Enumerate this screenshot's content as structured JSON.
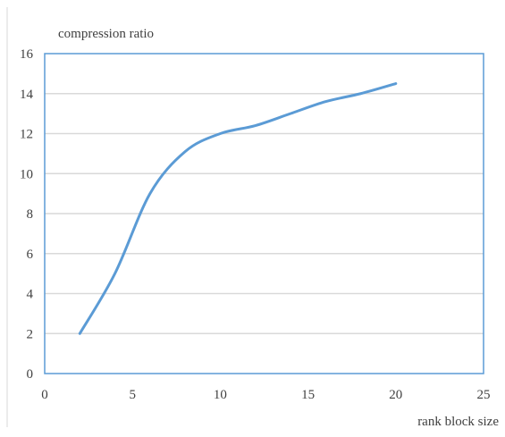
{
  "chart_data": {
    "type": "line",
    "title": "",
    "xlabel": "rank block size",
    "ylabel": "compression ratio",
    "xlim": [
      0,
      25
    ],
    "ylim": [
      0,
      16
    ],
    "xticks": [
      0,
      5,
      10,
      15,
      20,
      25
    ],
    "yticks": [
      0,
      2,
      4,
      6,
      8,
      10,
      12,
      14,
      16
    ],
    "grid": "horizontal",
    "legend": "none",
    "series": [
      {
        "x": [
          2,
          4,
          6,
          8,
          10,
          12,
          14,
          16,
          18,
          20
        ],
        "y": [
          2.0,
          5.0,
          9.0,
          11.1,
          12.0,
          12.4,
          13.0,
          13.6,
          14.0,
          14.5
        ]
      }
    ],
    "colors": {
      "line": "#5b9bd5",
      "frame": "#5b9bd5",
      "grid": "#d9d9d9",
      "text": "#404040"
    }
  }
}
